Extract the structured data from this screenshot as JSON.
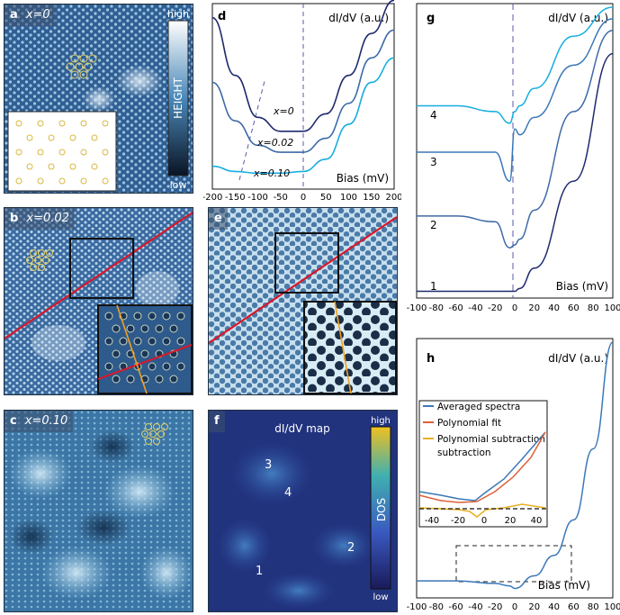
{
  "panels": {
    "a": {
      "letter": "a",
      "label": "x=0",
      "colorbar_high": "high",
      "colorbar_title": "HEIGHT",
      "colorbar_low": "low"
    },
    "b": {
      "letter": "b",
      "label": "x=0.02"
    },
    "c": {
      "letter": "c",
      "label": "x=0.10"
    },
    "d": {
      "letter": "d",
      "ylabel": "dI/dV (a.u.)",
      "xlabel": "Bias (mV)",
      "xticks": [
        "-200",
        "-150",
        "-100",
        "-50",
        "0",
        "50",
        "100",
        "150",
        "200"
      ],
      "curve_labels": [
        "x=0",
        "x=0.02",
        "x=0.10"
      ]
    },
    "e": {
      "letter": "e"
    },
    "f": {
      "letter": "f",
      "title": "dI/dV map",
      "colorbar_high": "high",
      "colorbar_title": "DOS",
      "colorbar_low": "low",
      "points": [
        "3",
        "4",
        "2",
        "1"
      ]
    },
    "g": {
      "letter": "g",
      "ylabel": "dI/dV (a.u.)",
      "xlabel": "Bias (mV)",
      "xticks": [
        "-100",
        "-80",
        "-60",
        "-40",
        "-20",
        "0",
        "20",
        "40",
        "60",
        "80",
        "100"
      ],
      "curve_labels": [
        "4",
        "3",
        "2",
        "1"
      ]
    },
    "h": {
      "letter": "h",
      "ylabel": "dI/dV (a.u.)",
      "xlabel": "Bias (mV)",
      "xticks": [
        "-100",
        "-80",
        "-60",
        "-40",
        "-20",
        "0",
        "20",
        "40",
        "60",
        "80",
        "100"
      ],
      "inset_xticks": [
        "-40",
        "-20",
        "0",
        "20",
        "40"
      ],
      "legend": [
        "Averaged spectra",
        "Polynomial fit",
        "Polynomial subtraction"
      ]
    }
  },
  "colors": {
    "curve_dark": "#1e2a6e",
    "curve_mid": "#3d6aa8",
    "curve_light": "#16aee0",
    "curve_blue": "#3a78b8",
    "fit": "#e0603a",
    "subtraction": "#e8b020",
    "line_red": "#d8182a",
    "line_orange": "#f0a020",
    "dashed": "#5a5aa8"
  },
  "chart_data": [
    {
      "type": "line",
      "panel": "d",
      "xlabel": "Bias (mV)",
      "ylabel": "dI/dV (a.u.)",
      "xlim": [
        -200,
        200
      ],
      "series": [
        {
          "name": "x=0",
          "x": [
            -200,
            -150,
            -100,
            -50,
            0,
            50,
            100,
            150,
            200
          ],
          "y": [
            0.95,
            0.62,
            0.38,
            0.3,
            0.3,
            0.4,
            0.62,
            0.86,
            1.05
          ]
        },
        {
          "name": "x=0.02",
          "x": [
            -200,
            -150,
            -100,
            -50,
            0,
            50,
            100,
            150,
            200
          ],
          "y": [
            0.58,
            0.36,
            0.22,
            0.18,
            0.18,
            0.26,
            0.46,
            0.72,
            0.88
          ]
        },
        {
          "name": "x=0.10",
          "x": [
            -200,
            -150,
            -100,
            -50,
            0,
            50,
            100,
            150,
            200
          ],
          "y": [
            0.1,
            0.07,
            0.06,
            0.06,
            0.07,
            0.14,
            0.34,
            0.58,
            0.72
          ]
        }
      ]
    },
    {
      "type": "line",
      "panel": "g",
      "xlabel": "Bias (mV)",
      "ylabel": "dI/dV (a.u.)",
      "xlim": [
        -100,
        100
      ],
      "series": [
        {
          "name": "4",
          "x": [
            -100,
            -60,
            -20,
            -5,
            0,
            5,
            20,
            60,
            100
          ],
          "y": [
            0.66,
            0.66,
            0.64,
            0.6,
            0.64,
            0.66,
            0.72,
            0.9,
            1.0
          ]
        },
        {
          "name": "3",
          "x": [
            -100,
            -60,
            -20,
            -5,
            0,
            5,
            20,
            60,
            100
          ],
          "y": [
            0.5,
            0.5,
            0.5,
            0.4,
            0.58,
            0.56,
            0.62,
            0.8,
            0.96
          ]
        },
        {
          "name": "2",
          "x": [
            -100,
            -60,
            -20,
            -5,
            0,
            5,
            20,
            60,
            100
          ],
          "y": [
            0.28,
            0.28,
            0.26,
            0.17,
            0.18,
            0.2,
            0.3,
            0.64,
            0.92
          ]
        },
        {
          "name": "1",
          "x": [
            -100,
            -60,
            -20,
            -5,
            0,
            5,
            20,
            60,
            100
          ],
          "y": [
            0.02,
            0.02,
            0.02,
            0.02,
            0.02,
            0.03,
            0.1,
            0.4,
            0.84
          ]
        }
      ]
    },
    {
      "type": "line",
      "panel": "h",
      "xlabel": "Bias (mV)",
      "ylabel": "dI/dV (a.u.)",
      "xlim": [
        -100,
        100
      ],
      "series": [
        {
          "name": "Averaged spectra",
          "x": [
            -100,
            -60,
            -20,
            -5,
            0,
            20,
            40,
            60,
            80,
            100
          ],
          "y": [
            0.06,
            0.06,
            0.05,
            0.04,
            0.03,
            0.08,
            0.16,
            0.3,
            0.58,
            1.0
          ]
        }
      ]
    }
  ]
}
